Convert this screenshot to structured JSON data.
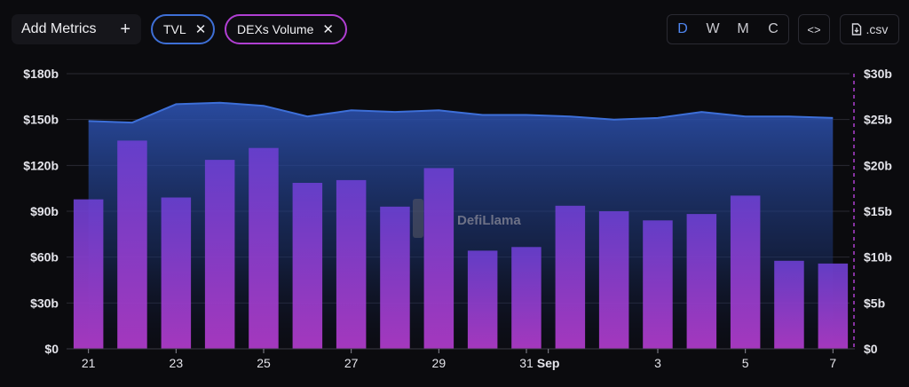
{
  "toolbar": {
    "add_metrics_label": "Add Metrics",
    "add_icon": "plus-icon",
    "chips": [
      {
        "label": "TVL",
        "color": "#3e6fd6"
      },
      {
        "label": "DEXs Volume",
        "color": "#b03fd2"
      }
    ],
    "periods": [
      "D",
      "W",
      "M",
      "C"
    ],
    "active_period": "D",
    "embed_icon": "code-icon",
    "csv_label": ".csv",
    "csv_icon": "download-file-icon"
  },
  "watermark": "DefiLlama",
  "colors": {
    "tvl": "#3d6fd8",
    "dex": "#9b3fd6",
    "active": "#4f86f0"
  },
  "chart_data": {
    "type": "bar",
    "x_tick_labels": [
      "21",
      "23",
      "25",
      "27",
      "29",
      "31",
      "Sep",
      "3",
      "5",
      "7"
    ],
    "dates": [
      "Aug 21",
      "Aug 22",
      "Aug 23",
      "Aug 24",
      "Aug 25",
      "Aug 26",
      "Aug 27",
      "Aug 28",
      "Aug 29",
      "Aug 30",
      "Aug 31",
      "Sep 1",
      "Sep 2",
      "Sep 3",
      "Sep 4",
      "Sep 5",
      "Sep 6",
      "Sep 7"
    ],
    "series": [
      {
        "name": "TVL",
        "type": "area",
        "axis": "left",
        "unit": "$b",
        "values": [
          149,
          148,
          160,
          161,
          159,
          152,
          156,
          155,
          156,
          153,
          153,
          152,
          150,
          151,
          155,
          152,
          152,
          151
        ]
      },
      {
        "name": "DEXs Volume",
        "type": "bar",
        "axis": "right",
        "unit": "$b",
        "values": [
          16.3,
          22.7,
          16.5,
          20.6,
          21.9,
          18.1,
          18.4,
          15.5,
          19.7,
          10.7,
          11.1,
          15.6,
          15.0,
          14.0,
          14.7,
          16.7,
          9.6,
          9.3
        ]
      }
    ],
    "y_left": {
      "ticks": [
        "$0",
        "$30b",
        "$60b",
        "$90b",
        "$120b",
        "$150b",
        "$180b"
      ],
      "ylim": [
        0,
        180
      ]
    },
    "y_right": {
      "ticks": [
        "$0",
        "$5b",
        "$10b",
        "$15b",
        "$20b",
        "$25b",
        "$30b"
      ],
      "ylim": [
        0,
        30
      ]
    },
    "grid": true
  }
}
